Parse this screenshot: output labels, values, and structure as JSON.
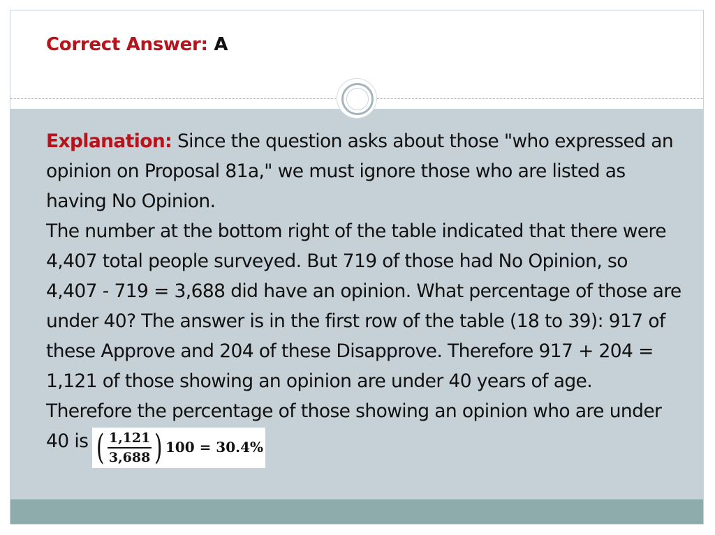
{
  "title": {
    "label": "Correct Answer:",
    "value": "A"
  },
  "explanation": {
    "label": "Explanation:",
    "paragraph1": "Since the question asks about those \"who expressed an opinion on Proposal 81a,\" we must ignore those who are listed as having No Opinion.",
    "paragraph2": "The number at the bottom right of the table indicated that there were 4,407 total people surveyed. But 719 of those had No Opinion, so 4,407 - 719 = 3,688 did have an opinion. What percentage of those are under 40? The answer is in the first row of the table (18 to 39): 917 of these Approve and 204 of these Disapprove. Therefore 917 + 204 = 1,121 of those showing an opinion are under 40 years of age.",
    "paragraph3": "Therefore the percentage of those showing an opinion who are under 40 is"
  },
  "formula": {
    "open_paren": "(",
    "numerator": "1,121",
    "denominator": "3,688",
    "close_paren": ")",
    "result": "100 = 30.4%"
  },
  "colors": {
    "accent_red": "#b5141c",
    "body_background": "#c5d1d6",
    "footer_band": "#8eacac"
  }
}
